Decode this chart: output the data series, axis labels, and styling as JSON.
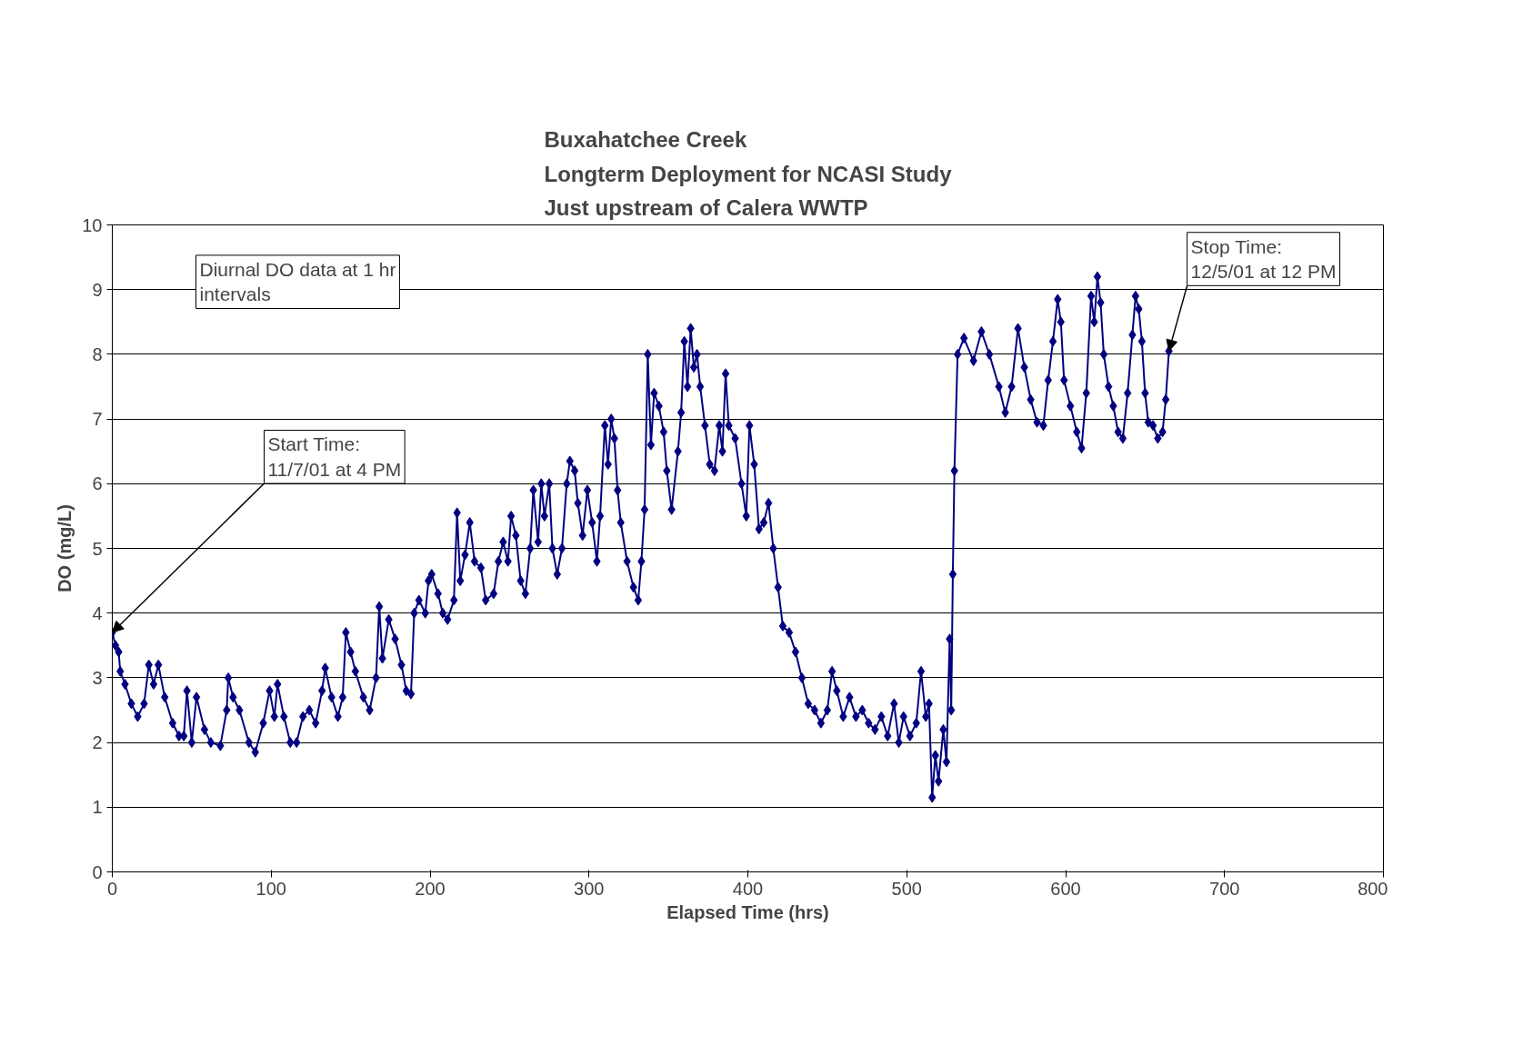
{
  "chart_data": {
    "type": "line",
    "title": "Buxahatchee Creek\nLongterm Deployment for NCASI Study\nJust upstream of Calera WWTP",
    "xlabel": "Elapsed Time (hrs)",
    "ylabel": "DO (mg/L)",
    "xlim": [
      0,
      800
    ],
    "xticks": [
      0,
      100,
      200,
      300,
      400,
      500,
      600,
      700,
      800
    ],
    "ylim": [
      0,
      10
    ],
    "yticks": [
      0,
      1,
      2,
      3,
      4,
      5,
      6,
      7,
      8,
      9,
      10
    ],
    "grid": "y",
    "marker": "diamond",
    "line_style": "solid",
    "series": [
      {
        "color": "#000080",
        "x": [
          0,
          2,
          4,
          5,
          8,
          12,
          16,
          20,
          23,
          26,
          29,
          33,
          38,
          42,
          45,
          47,
          50,
          53,
          58,
          62,
          68,
          72,
          73,
          76,
          80,
          86,
          90,
          95,
          99,
          102,
          104,
          108,
          112,
          116,
          120,
          124,
          128,
          132,
          134,
          138,
          142,
          145,
          147,
          150,
          153,
          158,
          162,
          166,
          168,
          170,
          174,
          178,
          182,
          185,
          188,
          190,
          193,
          197,
          199,
          201,
          205,
          208,
          211,
          215,
          217,
          219,
          222,
          225,
          228,
          232,
          235,
          240,
          243,
          246,
          249,
          251,
          254,
          257,
          260,
          263,
          265,
          268,
          270,
          272,
          275,
          277,
          280,
          283,
          286,
          288,
          291,
          293,
          296,
          299,
          302,
          305,
          307,
          310,
          312,
          314,
          316,
          318,
          320,
          324,
          328,
          331,
          333,
          335,
          337,
          339,
          341,
          344,
          347,
          349,
          352,
          356,
          358,
          360,
          362,
          364,
          366,
          368,
          370,
          373,
          376,
          379,
          382,
          384,
          386,
          388,
          392,
          396,
          399,
          401,
          404,
          407,
          410,
          413,
          416,
          419,
          422,
          426,
          430,
          434,
          438,
          442,
          446,
          450,
          453,
          456,
          460,
          464,
          468,
          472,
          476,
          480,
          484,
          488,
          492,
          495,
          498,
          502,
          506,
          509,
          512,
          514,
          516,
          518,
          520,
          523,
          525,
          527,
          528,
          529,
          530,
          532,
          536,
          542,
          547,
          552,
          558,
          562,
          566,
          570,
          574,
          578,
          582,
          586,
          589,
          592,
          595,
          597,
          599,
          603,
          607,
          610,
          613,
          616,
          618,
          620,
          622,
          624,
          627,
          630,
          633,
          636,
          639,
          642,
          644,
          646,
          648,
          650,
          652,
          655,
          658,
          661,
          663,
          665
        ],
        "values": [
          3.7,
          3.5,
          3.4,
          3.1,
          2.9,
          2.6,
          2.4,
          2.6,
          3.2,
          2.9,
          3.2,
          2.7,
          2.3,
          2.1,
          2.1,
          2.8,
          2.0,
          2.7,
          2.2,
          2.0,
          1.95,
          2.5,
          3.0,
          2.7,
          2.5,
          2.0,
          1.85,
          2.3,
          2.8,
          2.4,
          2.9,
          2.4,
          2.0,
          2.0,
          2.4,
          2.5,
          2.3,
          2.8,
          3.15,
          2.7,
          2.4,
          2.7,
          3.7,
          3.4,
          3.1,
          2.7,
          2.5,
          3.0,
          4.1,
          3.3,
          3.9,
          3.6,
          3.2,
          2.8,
          2.75,
          4.0,
          4.2,
          4.0,
          4.5,
          4.6,
          4.3,
          4.0,
          3.9,
          4.2,
          5.55,
          4.5,
          4.9,
          5.4,
          4.8,
          4.7,
          4.2,
          4.3,
          4.8,
          5.1,
          4.8,
          5.5,
          5.2,
          4.5,
          4.3,
          5.0,
          5.9,
          5.1,
          6.0,
          5.5,
          6.0,
          5.0,
          4.6,
          5.0,
          6.0,
          6.35,
          6.2,
          5.7,
          5.2,
          5.9,
          5.4,
          4.8,
          5.5,
          6.9,
          6.3,
          7.0,
          6.7,
          5.9,
          5.4,
          4.8,
          4.4,
          4.2,
          4.8,
          5.6,
          8.0,
          6.6,
          7.4,
          7.2,
          6.8,
          6.2,
          5.6,
          6.5,
          7.1,
          8.2,
          7.5,
          8.4,
          7.8,
          8.0,
          7.5,
          6.9,
          6.3,
          6.2,
          6.9,
          6.5,
          7.7,
          6.9,
          6.7,
          6.0,
          5.5,
          6.9,
          6.3,
          5.3,
          5.4,
          5.7,
          5.0,
          4.4,
          3.8,
          3.7,
          3.4,
          3.0,
          2.6,
          2.5,
          2.3,
          2.5,
          3.1,
          2.8,
          2.4,
          2.7,
          2.4,
          2.5,
          2.3,
          2.2,
          2.4,
          2.1,
          2.6,
          2.0,
          2.4,
          2.1,
          2.3,
          3.1,
          2.4,
          2.6,
          1.15,
          1.8,
          1.4,
          2.2,
          1.7,
          3.6,
          2.5,
          4.6,
          6.2,
          8.0,
          8.25,
          7.9,
          8.35,
          8.0,
          7.5,
          7.1,
          7.5,
          8.4,
          7.8,
          7.3,
          6.95,
          6.9,
          7.6,
          8.2,
          8.85,
          8.5,
          7.6,
          7.2,
          6.8,
          6.55,
          7.4,
          8.9,
          8.5,
          9.2,
          8.8,
          8.0,
          7.5,
          7.2,
          6.8,
          6.7,
          7.4,
          8.3,
          8.9,
          8.7,
          8.2,
          7.4,
          6.95,
          6.9,
          6.7,
          6.8,
          7.3,
          8.05
        ]
      }
    ],
    "annotations": [
      {
        "text": "Start Time:\n11/7/01 at 4 PM",
        "x": 0,
        "y": 3.7
      },
      {
        "text": "Stop Time:\n12/5/01 at 12 PM",
        "x": 665,
        "y": 8.05
      },
      "Diurnal DO data at 1 hr\nintervals"
    ]
  }
}
